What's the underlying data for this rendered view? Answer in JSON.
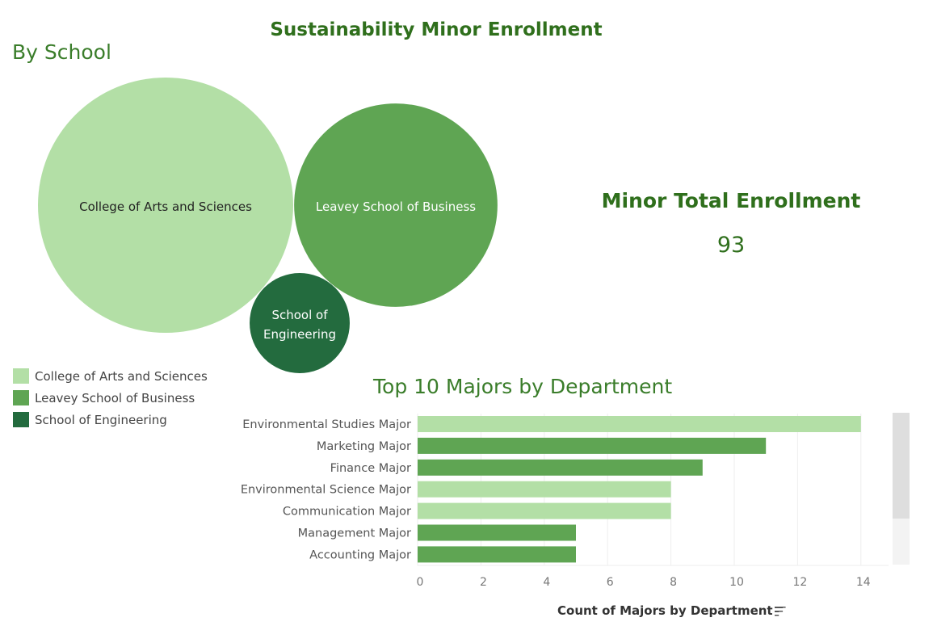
{
  "title": "Sustainability Minor Enrollment",
  "kpi": {
    "label": "Minor Total Enrollment",
    "value": "93"
  },
  "colors": {
    "College of Arts and Sciences": "#b3dfa6",
    "Leavey School of Business": "#5fa553",
    "School of Engineering": "#236b3e",
    "title": "#2f6f1c"
  },
  "chart_data": [
    {
      "type": "bubble",
      "title": "By School",
      "categories": [
        "College of Arts and Sciences",
        "Leavey School of Business",
        "School of Engineering"
      ],
      "bubble_labels": [
        [
          "College of Arts and Sciences"
        ],
        [
          "Leavey School of Business"
        ],
        [
          "School of",
          "Engineering"
        ]
      ],
      "values": [
        52,
        33,
        8
      ],
      "legend": {
        "placement": "bottom-left",
        "entries": [
          "College of Arts and Sciences",
          "Leavey School of Business",
          "School of Engineering"
        ]
      }
    },
    {
      "type": "bar",
      "orientation": "horizontal",
      "title": "Top 10 Majors by Department",
      "xlabel": "Count of Majors by Department",
      "categories": [
        "Environmental Studies Major",
        "Marketing Major",
        "Finance Major",
        "Environmental Science Major",
        "Communication Major",
        "Management Major",
        "Accounting Major"
      ],
      "values": [
        14,
        11,
        9,
        8,
        8,
        5,
        5
      ],
      "school": [
        "College of Arts and Sciences",
        "Leavey School of Business",
        "Leavey School of Business",
        "College of Arts and Sciences",
        "College of Arts and Sciences",
        "Leavey School of Business",
        "Leavey School of Business"
      ],
      "xlim": [
        0,
        15
      ],
      "xticks": [
        0,
        2,
        4,
        6,
        8,
        10,
        12,
        14
      ],
      "grid": true,
      "scrollbar": true
    }
  ]
}
